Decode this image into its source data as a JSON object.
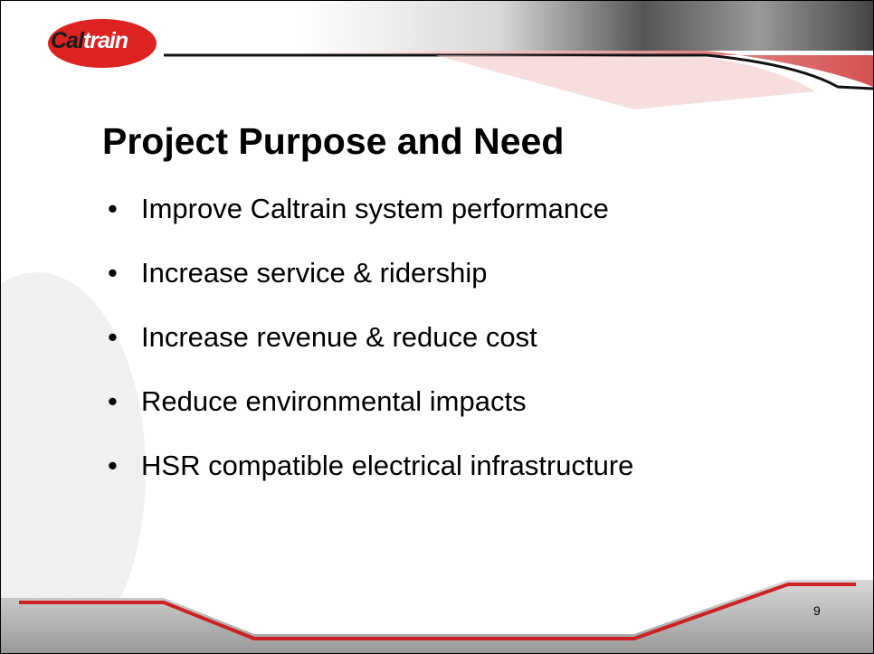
{
  "logo": [
    "Cal",
    "train"
  ],
  "title": "Project Purpose and Need",
  "bullets": [
    "Improve Caltrain system performance",
    "Increase service & ridership",
    "Increase revenue & reduce cost",
    "Reduce environmental impacts",
    "HSR compatible electrical infrastructure"
  ],
  "page_number": 9
}
